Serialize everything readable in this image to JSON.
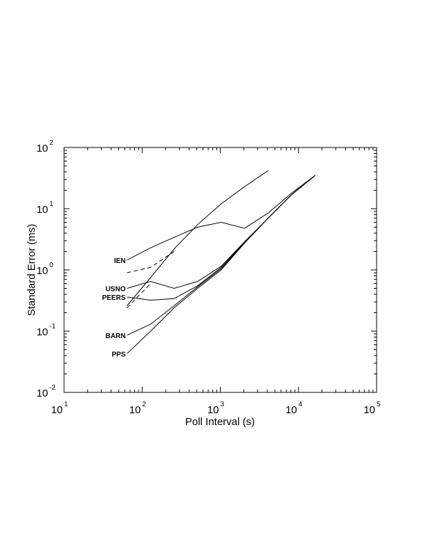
{
  "chart_data": {
    "type": "line",
    "xlabel": "Poll Interval (s)",
    "ylabel": "Standard Error (ms)",
    "xscale": "log",
    "yscale": "log",
    "xlim": [
      10,
      100000
    ],
    "ylim": [
      0.01,
      100
    ],
    "x_ticks": [
      {
        "value": 10,
        "base": "10",
        "exp": "1"
      },
      {
        "value": 100,
        "base": "10",
        "exp": "2"
      },
      {
        "value": 1000,
        "base": "10",
        "exp": "3"
      },
      {
        "value": 10000,
        "base": "10",
        "exp": "4"
      },
      {
        "value": 100000,
        "base": "10",
        "exp": "5"
      }
    ],
    "y_ticks": [
      {
        "value": 0.01,
        "base": "10",
        "exp": "-2"
      },
      {
        "value": 0.1,
        "base": "10",
        "exp": "-1"
      },
      {
        "value": 1,
        "base": "10",
        "exp": "0"
      },
      {
        "value": 10,
        "base": "10",
        "exp": "1"
      },
      {
        "value": 100,
        "base": "10",
        "exp": "2"
      }
    ],
    "grid": false,
    "series": [
      {
        "name": "IEN",
        "style": "solid",
        "x": [
          64,
          128,
          256,
          512,
          1024,
          2048,
          4096,
          8192,
          16384
        ],
        "y": [
          1.45,
          2.3,
          3.4,
          5.0,
          6.0,
          4.8,
          8.5,
          18,
          35
        ]
      },
      {
        "name": "",
        "style": "dashed",
        "x": [
          64,
          128,
          256
        ],
        "y": [
          0.9,
          1.1,
          2.0
        ]
      },
      {
        "name": "",
        "style": "solid",
        "x": [
          64,
          128,
          256,
          512,
          1024,
          2048,
          4096
        ],
        "y": [
          0.26,
          0.75,
          2.2,
          5.5,
          12,
          23,
          42
        ]
      },
      {
        "name": "",
        "style": "dashed",
        "x": [
          64,
          128
        ],
        "y": [
          0.24,
          0.6
        ]
      },
      {
        "name": "USNO",
        "style": "solid",
        "x": [
          64,
          128,
          256,
          512,
          1024,
          2048,
          4096,
          8192,
          16384
        ],
        "y": [
          0.5,
          0.65,
          0.5,
          0.65,
          1.15,
          2.9,
          7.0,
          17,
          35
        ]
      },
      {
        "name": "PEERS",
        "style": "solid",
        "x": [
          64,
          128,
          256,
          512,
          1024,
          2048,
          4096,
          8192,
          16384
        ],
        "y": [
          0.36,
          0.32,
          0.34,
          0.55,
          1.1,
          2.8,
          7.0,
          17,
          35
        ]
      },
      {
        "name": "BARN",
        "style": "solid",
        "x": [
          64,
          128,
          256,
          512,
          1024,
          2048,
          4096,
          8192,
          16384
        ],
        "y": [
          0.086,
          0.13,
          0.26,
          0.53,
          1.05,
          2.8,
          7.0,
          17,
          35
        ]
      },
      {
        "name": "PPS",
        "style": "solid",
        "x": [
          64,
          128,
          256,
          512,
          1024,
          2048,
          4096,
          8192,
          16384
        ],
        "y": [
          0.043,
          0.1,
          0.24,
          0.5,
          1.0,
          2.75,
          7.0,
          17,
          35
        ]
      }
    ],
    "annotations": [
      {
        "text": "IEN",
        "x": 64,
        "y": 1.45
      },
      {
        "text": "USNO",
        "x": 64,
        "y": 0.5
      },
      {
        "text": "PEERS",
        "x": 64,
        "y": 0.36
      },
      {
        "text": "BARN",
        "x": 64,
        "y": 0.086
      },
      {
        "text": "PPS",
        "x": 64,
        "y": 0.043
      }
    ]
  }
}
